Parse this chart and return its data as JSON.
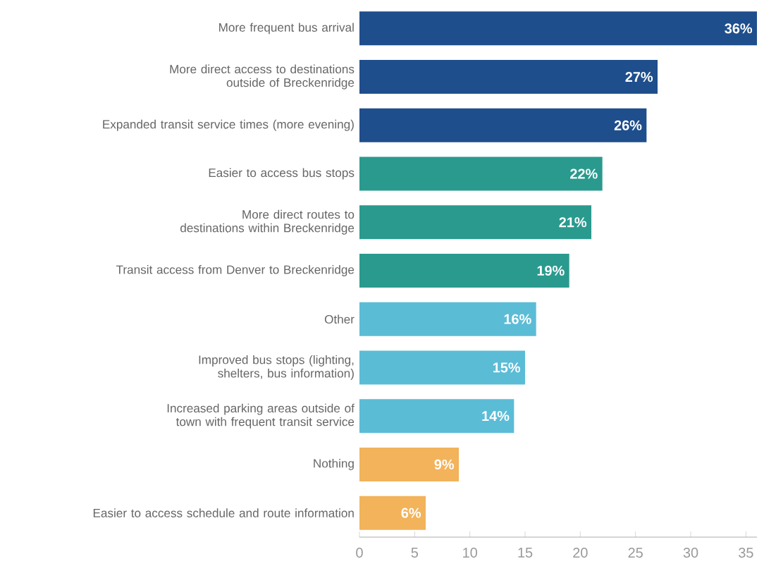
{
  "chart_data": {
    "type": "bar",
    "orientation": "horizontal",
    "categories": [
      "More frequent bus arrival",
      "More direct access to destinations outside of Breckenridge",
      "Expanded transit service times (more evening)",
      "Easier to access bus stops",
      "More direct routes to destinations within Breckenridge",
      "Transit access from Denver to Breckenridge",
      "Other",
      "Improved bus stops (lighting, shelters, bus information)",
      "Increased parking areas outside of town with frequent transit service",
      "Nothing",
      "Easier to access schedule and route information"
    ],
    "values": [
      36,
      27,
      26,
      22,
      21,
      19,
      16,
      15,
      14,
      9,
      6
    ],
    "value_labels": [
      "36%",
      "27%",
      "26%",
      "22%",
      "21%",
      "19%",
      "16%",
      "15%",
      "14%",
      "9%",
      "6%"
    ],
    "colors": [
      "#1f4e8c",
      "#1f4e8c",
      "#1f4e8c",
      "#2a9a8e",
      "#2a9a8e",
      "#2a9a8e",
      "#5bbcd6",
      "#5bbcd6",
      "#5bbcd6",
      "#f2b35b",
      "#f2b35b"
    ],
    "xlim": [
      0,
      36
    ],
    "xticks": [
      0,
      5,
      10,
      15,
      20,
      25,
      30,
      35
    ]
  }
}
